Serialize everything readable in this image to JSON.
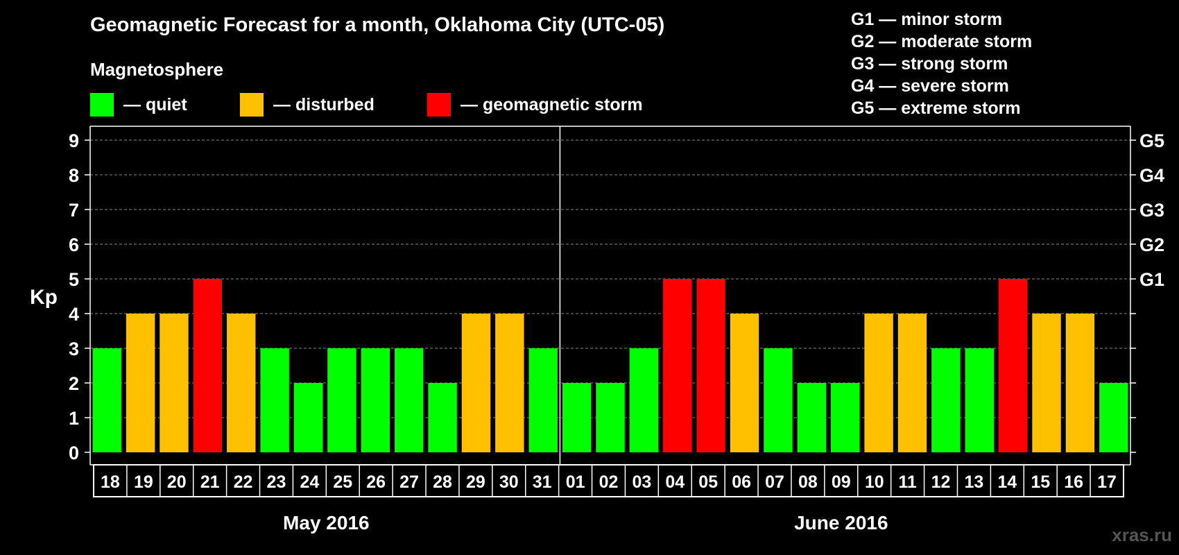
{
  "chart_data": {
    "type": "bar",
    "title": "Geomagnetic Forecast for a month, Oklahoma City (UTC-05)",
    "subtitle": "Magnetosphere",
    "ylabel": "Kp",
    "ylim": [
      0,
      9
    ],
    "yticks": [
      "0",
      "1",
      "2",
      "3",
      "4",
      "5",
      "6",
      "7",
      "8",
      "9"
    ],
    "right_ticks": [
      {
        "value": 5,
        "label": "G1"
      },
      {
        "value": 6,
        "label": "G2"
      },
      {
        "value": 7,
        "label": "G3"
      },
      {
        "value": 8,
        "label": "G4"
      },
      {
        "value": 9,
        "label": "G5"
      }
    ],
    "categories": [
      "18",
      "19",
      "20",
      "21",
      "22",
      "23",
      "24",
      "25",
      "26",
      "27",
      "28",
      "29",
      "30",
      "31",
      "01",
      "02",
      "03",
      "04",
      "05",
      "06",
      "07",
      "08",
      "09",
      "10",
      "11",
      "12",
      "13",
      "14",
      "15",
      "16",
      "17"
    ],
    "values": [
      3,
      4,
      4,
      5,
      4,
      3,
      2,
      3,
      3,
      3,
      2,
      4,
      4,
      3,
      2,
      2,
      3,
      5,
      5,
      4,
      3,
      2,
      2,
      4,
      4,
      3,
      3,
      5,
      4,
      4,
      2
    ],
    "months": [
      {
        "label": "May 2016",
        "start_index": 0,
        "end_index": 13
      },
      {
        "label": "June 2016",
        "start_index": 14,
        "end_index": 30
      }
    ],
    "legend": [
      {
        "key": "quiet",
        "label": "— quiet",
        "color": "#00ff00"
      },
      {
        "key": "disturbed",
        "label": "— disturbed",
        "color": "#ffc000"
      },
      {
        "key": "storm",
        "label": "— geomagnetic storm",
        "color": "#ff0000"
      }
    ],
    "storm_levels": [
      "G1 — minor storm",
      "G2 — moderate storm",
      "G3 — strong storm",
      "G4 — severe storm",
      "G5 — extreme storm"
    ],
    "grid": true
  },
  "watermark": "xras.ru"
}
